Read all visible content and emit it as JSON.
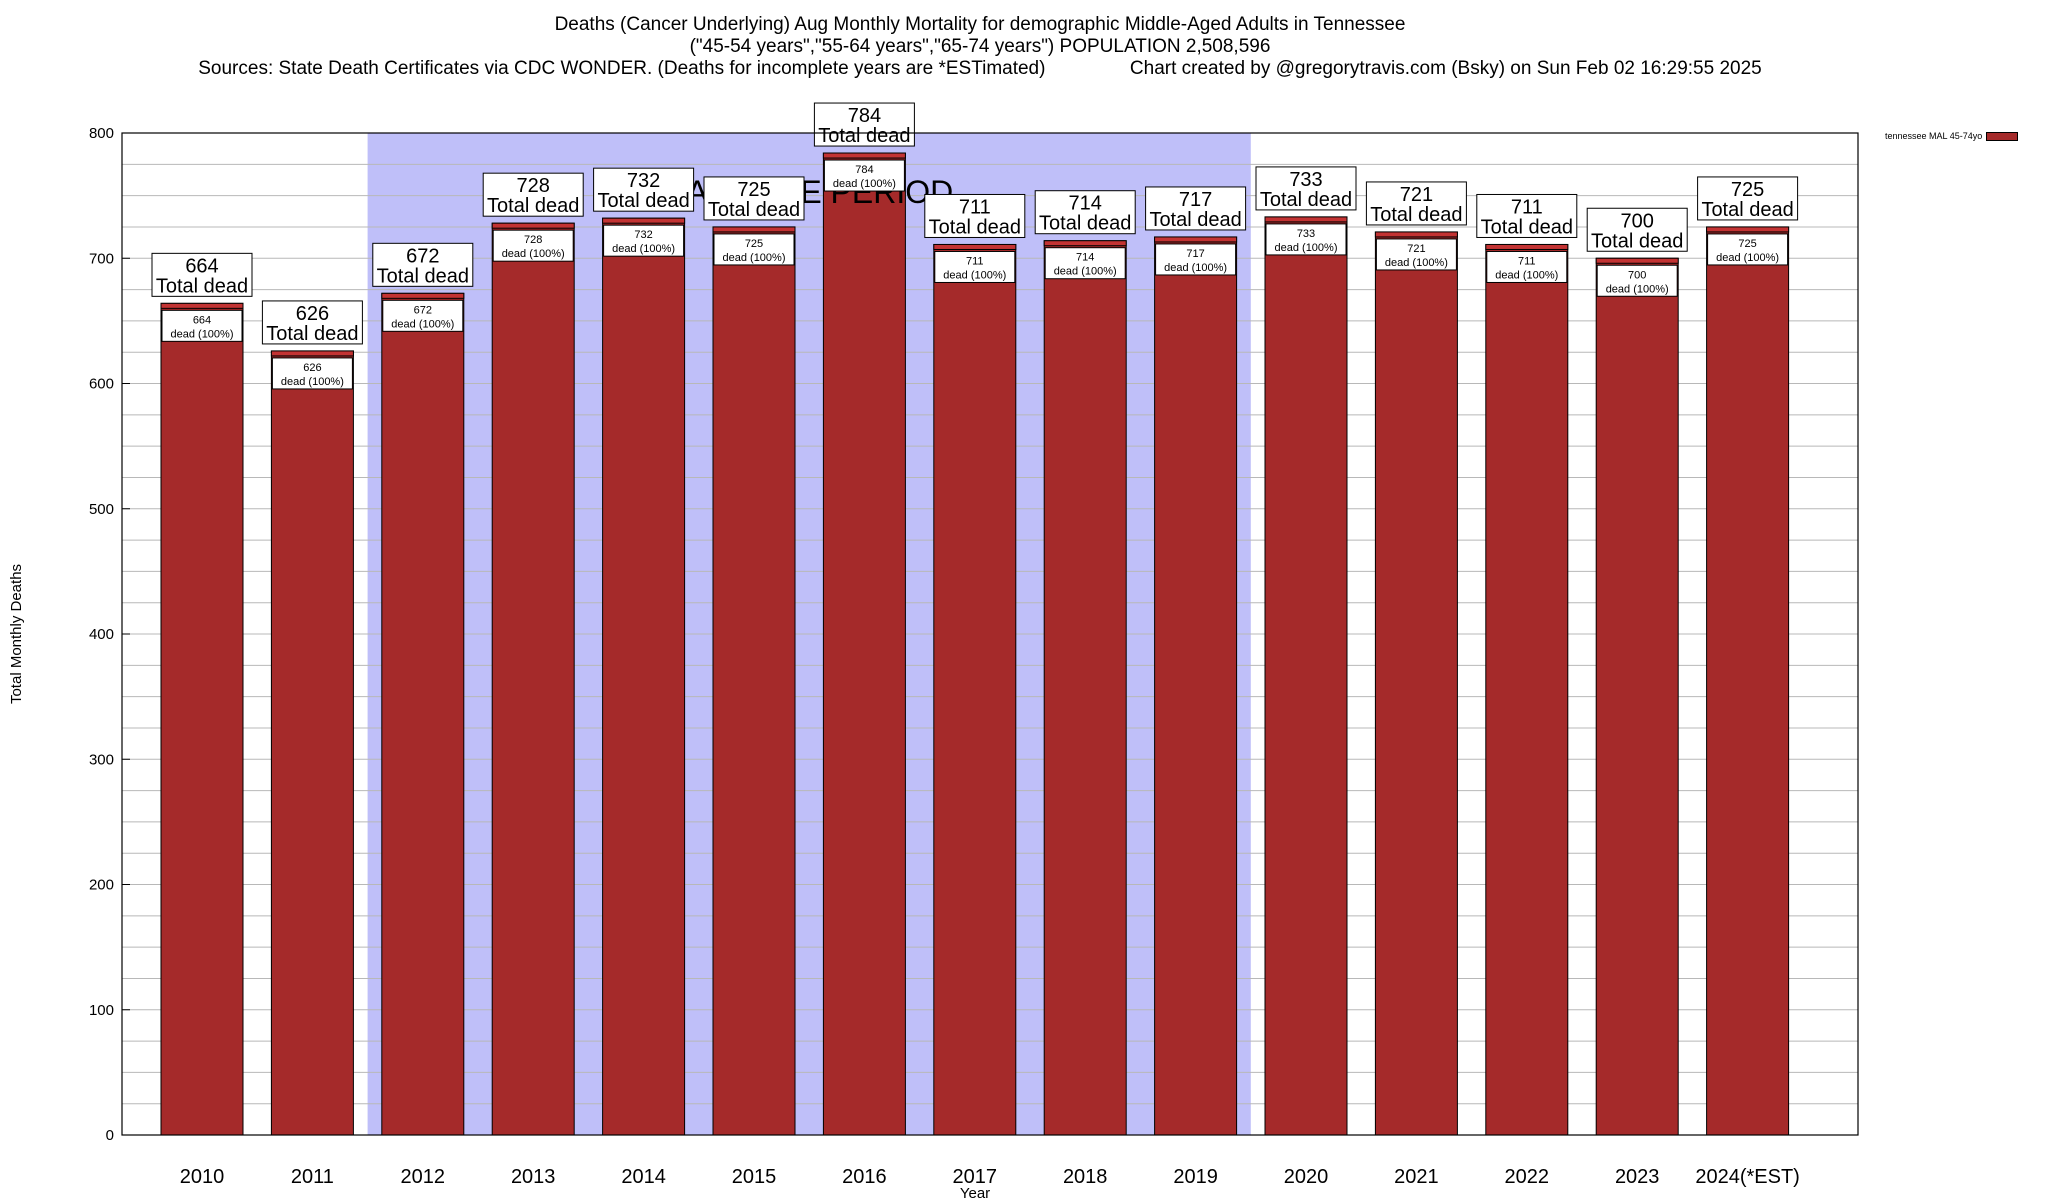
{
  "title": {
    "line1": "Deaths (Cancer Underlying) Aug Monthly Mortality for demographic Middle-Aged Adults in Tennessee",
    "line2": "(\"45-54 years\",\"55-64 years\",\"65-74 years\") POPULATION 2,508,596",
    "line3": "Sources: State Death Certificates via CDC WONDER. (Deaths for incomplete years are *ESTimated)                Chart created by @gregorytravis.com (Bsky) on Sun Feb 02 16:29:55 2025"
  },
  "chart_data": {
    "type": "bar",
    "categories": [
      "2010",
      "2011",
      "2012",
      "2013",
      "2014",
      "2015",
      "2016",
      "2017",
      "2018",
      "2019",
      "2020",
      "2021",
      "2022",
      "2023",
      "2024(*EST)"
    ],
    "series": [
      {
        "name": "tennessee MAL 45-74yo",
        "values": [
          664,
          626,
          672,
          728,
          732,
          725,
          784,
          711,
          714,
          717,
          733,
          721,
          711,
          700,
          725
        ]
      }
    ],
    "top_label_suffix": "Total dead",
    "inner_label_suffix": "dead (100%)",
    "xlabel": "Year",
    "ylabel": "Total Monthly Deaths",
    "ylim": [
      0,
      800
    ],
    "yticks": [
      0,
      100,
      200,
      300,
      400,
      500,
      600,
      700,
      800
    ],
    "grid": true,
    "legend": "top-right",
    "baseline_period": {
      "label": "BASELINE PERIOD",
      "start": "2012",
      "end": "2019"
    },
    "colors": {
      "bar": "#a52a2a",
      "bar_cap": "#c33333",
      "baseline": "#bfbff9"
    }
  }
}
